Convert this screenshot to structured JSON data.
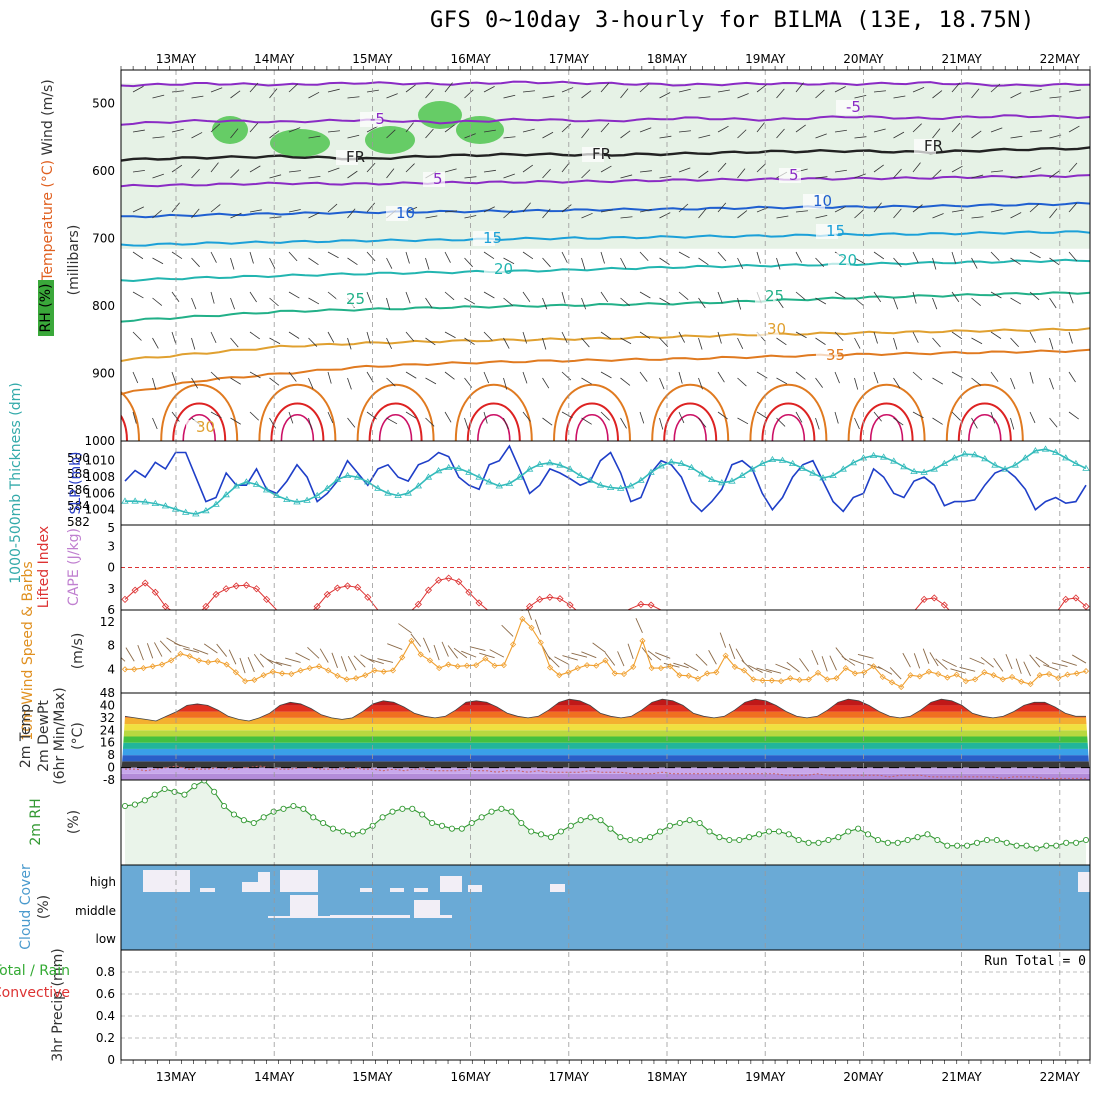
{
  "title": "GFS 0~10day 3-hourly for BILMA (13E, 18.75N)",
  "dates": [
    "13MAY",
    "14MAY",
    "15MAY",
    "16MAY",
    "17MAY",
    "18MAY",
    "19MAY",
    "20MAY",
    "21MAY",
    "22MAY"
  ],
  "colors": {
    "rh_fill": "#e6f2e6",
    "rh_mid": "#c8dcc8",
    "rh_dark": "#a6bca6",
    "rh_green": "#66cc66",
    "slp": "#1f3fc8",
    "thickness": "#33bbbb",
    "lifted": "#dd3333",
    "wind10m": "#f0a030",
    "rh2m": "#339933",
    "cloud": "#6aaad6"
  },
  "chart_data": [
    {
      "type": "contour",
      "panel": "upper-air",
      "ylabel_parts": [
        "RH (%)",
        "Temperature (°C)",
        "Wind (m/s)",
        "(millibars)"
      ],
      "y_ticks": [
        500,
        600,
        700,
        800,
        900,
        1000
      ],
      "ylim": [
        1000,
        450
      ],
      "temperature_contours": [
        {
          "label": "-5",
          "value": -5,
          "color": "#8a2bc4",
          "p": [
            473,
            470,
            472,
            469,
            471,
            468,
            470,
            472,
            470,
            471,
            469,
            473,
            471
          ]
        },
        {
          "label": "-5",
          "value": -5,
          "color": "#8a2bc4",
          "p": [
            530,
            525,
            527,
            524,
            528,
            523,
            526,
            521,
            524,
            519,
            522,
            518,
            520
          ]
        },
        {
          "label": "FR",
          "value": 0,
          "color": "#222222",
          "p": [
            583,
            580,
            578,
            582,
            577,
            575,
            576,
            574,
            571,
            570,
            572,
            568,
            566
          ]
        },
        {
          "label": "5",
          "value": 5,
          "color": "#8a2bc4",
          "p": [
            622,
            620,
            618,
            619,
            617,
            616,
            615,
            613,
            612,
            611,
            610,
            608,
            607
          ]
        },
        {
          "label": "10",
          "value": 10,
          "color": "#1f5fd0",
          "p": [
            668,
            665,
            663,
            661,
            660,
            659,
            657,
            656,
            654,
            653,
            652,
            650,
            648
          ]
        },
        {
          "label": "15",
          "value": 15,
          "color": "#1ba0d8",
          "p": [
            710,
            707,
            705,
            703,
            702,
            700,
            699,
            697,
            696,
            694,
            693,
            691,
            690
          ]
        },
        {
          "label": "20",
          "value": 20,
          "color": "#22b5b0",
          "p": [
            762,
            758,
            755,
            752,
            750,
            748,
            745,
            742,
            740,
            738,
            736,
            734,
            732
          ]
        },
        {
          "label": "25",
          "value": 25,
          "color": "#22b088",
          "p": [
            822,
            815,
            808,
            805,
            802,
            800,
            798,
            796,
            792,
            788,
            785,
            782,
            780
          ]
        },
        {
          "label": "30",
          "value": 30,
          "color": "#e0a030",
          "p": [
            880,
            870,
            860,
            855,
            852,
            850,
            848,
            845,
            842,
            840,
            838,
            836,
            834
          ]
        },
        {
          "label": "35",
          "value": 35,
          "color": "#e07a20",
          "p": [
            930,
            910,
            900,
            890,
            885,
            882,
            880,
            878,
            875,
            872,
            870,
            868,
            866
          ]
        }
      ],
      "contour_labels_extra": [
        "-5",
        "5",
        "10",
        "15",
        "20",
        "25",
        "30",
        "35",
        "FR",
        "FR",
        "FR",
        "30",
        "10",
        "30"
      ],
      "rh_shading": [
        "30",
        "50",
        "70",
        "90"
      ]
    },
    {
      "type": "line",
      "panel": "slp-thickness",
      "ylabel": "1000-500mb Thickness (dm)",
      "ylabel2": "SLP (mb)",
      "y_ticks_left": [
        582,
        584,
        586,
        588,
        590
      ],
      "y_ticks_right": [
        1004,
        1006,
        1008,
        1010
      ],
      "y_top_label": "1000",
      "series": [
        {
          "name": "SLP (mb)",
          "axis": "right",
          "color": "#1f3fc8",
          "values": [
            1007.5,
            1008.8,
            1008,
            1009.8,
            1009,
            1011,
            1011,
            1008,
            1005,
            1005.5,
            1008.5,
            1007,
            1007,
            1009,
            1006.5,
            1006,
            1007.5,
            1009.5,
            1008,
            1005,
            1006,
            1007.5,
            1010,
            1008.5,
            1007,
            1009,
            1009.5,
            1008,
            1007.5,
            1009.5,
            1010,
            1011,
            1010.5,
            1008,
            1007,
            1006.5,
            1009.5,
            1010,
            1011.8,
            1009,
            1006,
            1007,
            1009,
            1008.5,
            1007.8,
            1007,
            1007.5,
            1010,
            1011,
            1008.5,
            1005,
            1005.5,
            1008.5,
            1010,
            1009.5,
            1008,
            1005,
            1003.8,
            1005,
            1006.5,
            1009.5,
            1010,
            1009,
            1006,
            1004,
            1005.5,
            1008,
            1009.5,
            1010,
            1007.5,
            1005,
            1003.8,
            1005.5,
            1006,
            1009,
            1008,
            1006,
            1005.5,
            1007.5,
            1008,
            1007,
            1004.5,
            1005,
            1005,
            1005.2,
            1007,
            1008.5,
            1009,
            1008,
            1006.5,
            1004,
            1005,
            1005.5,
            1004.8,
            1005,
            1007
          ]
        },
        {
          "name": "1000-500mb Thickness (dm)",
          "axis": "left",
          "color": "#33bbbb",
          "values": [
            584.6,
            584.6,
            584.5,
            584.3,
            584,
            583.6,
            583.2,
            583,
            583.4,
            584.2,
            585.4,
            586.5,
            587,
            586.7,
            586,
            585.3,
            584.8,
            584.5,
            584.7,
            585.3,
            586.2,
            587.3,
            587.8,
            587.6,
            587,
            586.2,
            585.6,
            585.3,
            585.6,
            586.5,
            587.6,
            588.4,
            588.8,
            588.7,
            588.2,
            587.6,
            587,
            586.5,
            586.8,
            587.6,
            588.6,
            589.2,
            589.4,
            589.1,
            588.6,
            587.8,
            587.2,
            586.6,
            586.3,
            586.2,
            586.5,
            587.2,
            588.2,
            589,
            589.5,
            589.3,
            588.8,
            588,
            587.3,
            586.9,
            587.1,
            587.8,
            588.6,
            589.3,
            589.8,
            589.7,
            589.3,
            588.7,
            588.1,
            587.5,
            587.8,
            588.6,
            589.4,
            590,
            590.3,
            590.1,
            589.6,
            588.9,
            588.3,
            588.2,
            588.6,
            589.3,
            590,
            590.5,
            590.4,
            589.9,
            589.1,
            588.6,
            589.1,
            590,
            590.9,
            591.1,
            590.7,
            590,
            589.3,
            588.7
          ]
        }
      ]
    },
    {
      "type": "line",
      "panel": "lifted-index",
      "ylabel": "Lifted Index",
      "ylabel2": "CAPE (J/kg)",
      "y_ticks": [
        -3,
        0,
        3,
        6
      ],
      "ylim": [
        -6,
        6
      ],
      "series": [
        {
          "name": "Lifted Index",
          "color": "#dd3333",
          "values": [
            4.5,
            3.2,
            2.2,
            3.5,
            5.5,
            6.5,
            7,
            6.8,
            5.5,
            3.8,
            3,
            2.6,
            2.5,
            3,
            4.5,
            6,
            7,
            7.2,
            6.8,
            5.5,
            3.8,
            2.9,
            2.6,
            2.8,
            4.2,
            6,
            6.8,
            7,
            6.5,
            5.2,
            3.2,
            1.8,
            1.5,
            2,
            3.5,
            5,
            6.2,
            7,
            7.2,
            6.8,
            5.5,
            4.5,
            4.2,
            4.4,
            5.3,
            6.5,
            7,
            7.2,
            7.2,
            6.5,
            5.8,
            5.2,
            5.3,
            6,
            7,
            7.5,
            7.5,
            7.5,
            7.3,
            7,
            6.4,
            6.2,
            6.5,
            7,
            7.5,
            7.5,
            7.5,
            7.5,
            7.4,
            7.2,
            6.5,
            6.8,
            7.2,
            7.5,
            7.5,
            7.5,
            7.2,
            7,
            6.2,
            4.5,
            4.3,
            5.3,
            6.8,
            7.5,
            7.5,
            7.2,
            6.5,
            6.2,
            6.8,
            7.5,
            7.5,
            7.2,
            6.5,
            4.5,
            4.3,
            5.5
          ]
        }
      ]
    },
    {
      "type": "line",
      "panel": "wind-10m",
      "ylabel": "10m Wind Speed & Barbs",
      "ylabel2": "(m/s)",
      "y_ticks": [
        4,
        8,
        12
      ],
      "ylim": [
        0,
        14
      ],
      "series": [
        {
          "name": "10m Wind Speed",
          "color": "#f0a030",
          "values": [
            4,
            4,
            4.2,
            4.5,
            4.8,
            5.5,
            6.6,
            6.2,
            5.5,
            5.2,
            5.4,
            4.8,
            3.5,
            2,
            2.2,
            3,
            3.6,
            3.3,
            3.2,
            3.8,
            4.2,
            4.5,
            3.8,
            2.9,
            2.3,
            2.5,
            3,
            3.8,
            3.6,
            3.8,
            6,
            8.8,
            6.5,
            5.5,
            4.2,
            4.8,
            4.5,
            4.6,
            4.7,
            5.8,
            4.6,
            4.7,
            8.2,
            12.5,
            11,
            8.5,
            4.3,
            3,
            3.5,
            4.2,
            4.7,
            4.6,
            5.5,
            3.3,
            3.2,
            4.4,
            8.8,
            4.2,
            4.2,
            4.5,
            3,
            2.9,
            2.4,
            3.3,
            3.5,
            6.3,
            4.4,
            3.8,
            2.3,
            2.1,
            2.1,
            2,
            2.5,
            2.2,
            2.3,
            3.4,
            2.3,
            2.5,
            4.2,
            3.3,
            3.5,
            4.5,
            2.7,
            1.8,
            1,
            3,
            2.8,
            3.6,
            3.2,
            2.6,
            3.1,
            2,
            2.3,
            3.5,
            3,
            2.3,
            2.7,
            1.9,
            1.5,
            3,
            3.2,
            2.5,
            3.1,
            3.3,
            3.7
          ]
        }
      ]
    },
    {
      "type": "area",
      "panel": "temp-2m",
      "ylabel_parts": [
        "2m Temp",
        "2m DewPt",
        "(6hr Min/Max)",
        "(°C)"
      ],
      "y_ticks": [
        -8,
        0,
        8,
        16,
        24,
        32,
        40,
        48
      ],
      "ylim": [
        -8,
        48
      ],
      "series": [
        {
          "name": "2m Temp",
          "values": [
            33,
            32,
            31,
            30,
            33,
            36,
            40,
            41,
            40,
            37,
            33,
            31,
            30,
            32,
            35,
            40,
            42,
            41,
            38,
            34,
            32,
            31,
            32,
            36,
            41,
            43,
            42,
            39,
            35,
            33,
            32,
            33,
            37,
            42,
            43,
            42,
            39,
            35,
            33,
            32,
            33,
            37,
            42,
            44,
            43,
            40,
            35,
            33,
            32,
            33,
            37,
            42,
            44,
            43,
            40,
            35,
            33,
            32,
            33,
            37,
            42,
            44,
            43,
            40,
            36,
            33,
            32,
            33,
            37,
            42,
            44,
            43,
            40,
            36,
            33,
            32,
            33,
            37,
            42,
            44,
            43,
            40,
            35,
            33,
            32,
            33,
            36,
            40,
            42,
            42,
            39,
            35,
            33,
            33
          ]
        },
        {
          "name": "2m DewPt",
          "values": [
            -1,
            -1,
            -2,
            -1,
            0,
            1,
            -1,
            -1,
            -1,
            0,
            -1,
            0,
            0,
            1,
            0,
            -1,
            -1,
            0,
            0,
            -1,
            -1,
            -1,
            0,
            -1,
            -1,
            -2,
            -1,
            -2,
            -1,
            -1,
            -2,
            -2,
            -2,
            -1,
            -2,
            -2,
            -3,
            -2,
            -2,
            -3,
            -2,
            -3,
            -3,
            -3,
            -3,
            -2,
            -3,
            -3,
            -3,
            -4,
            -4,
            -4,
            -3,
            -4,
            -4,
            -4,
            -4,
            -4,
            -4,
            -4,
            -4,
            -4,
            -4,
            -4,
            -5,
            -5,
            -5,
            -4,
            -5,
            -5,
            -5,
            -5,
            -5,
            -5,
            -6,
            -5,
            -5,
            -5,
            -6,
            -6,
            -6,
            -6,
            -6,
            -6,
            -6,
            -7,
            -6,
            -6,
            -6,
            -7,
            -7,
            -7,
            -7,
            -7
          ]
        }
      ]
    },
    {
      "type": "line",
      "panel": "rh-2m",
      "ylabel": "2m RH",
      "ylabel2": "(%)",
      "series": [
        {
          "name": "2m RH",
          "color": "#339933",
          "values": [
            18,
            18.5,
            20,
            22,
            24,
            23,
            22,
            25,
            27,
            23,
            18,
            15,
            13,
            12,
            14,
            16,
            17,
            18,
            17,
            14,
            12,
            10,
            9,
            8,
            9,
            11,
            14,
            16,
            17,
            17,
            15,
            12,
            11,
            10,
            10,
            12,
            14,
            16,
            17,
            16,
            12,
            9,
            8,
            7,
            9,
            11,
            13,
            14,
            13,
            10,
            7,
            6,
            6,
            7,
            9,
            11,
            12,
            13,
            12,
            9,
            7,
            6,
            6,
            7,
            8,
            9,
            9,
            8,
            6,
            5,
            5,
            6,
            7,
            9,
            10,
            8,
            6,
            5,
            5,
            6,
            7,
            8,
            6,
            4,
            4,
            4,
            5,
            6,
            6,
            5,
            4,
            4,
            3,
            4,
            4,
            5,
            5,
            6
          ]
        }
      ]
    },
    {
      "type": "bar",
      "panel": "cloud-cover",
      "ylabel": "Cloud Cover",
      "ylabel2": "(%)",
      "levels": [
        "high",
        "middle",
        "low"
      ]
    },
    {
      "type": "bar",
      "panel": "precip",
      "ylabel": "3hr Precip (mm)",
      "ylabel2_parts": [
        "Total / Rain",
        "Convective"
      ],
      "annotation": "Run Total = 0",
      "y_ticks": [
        "0",
        "0.2",
        "0.4",
        "0.6",
        "0.8"
      ],
      "ylim": [
        0,
        1
      ],
      "values": []
    }
  ]
}
